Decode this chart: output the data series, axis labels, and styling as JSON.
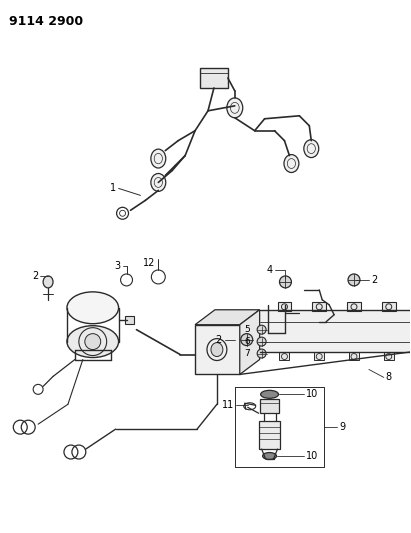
{
  "title": "9114 2900",
  "bg": "#ffffff",
  "lc": "#2a2a2a",
  "tc": "#000000",
  "fig_w": 4.11,
  "fig_h": 5.33,
  "dpi": 100
}
